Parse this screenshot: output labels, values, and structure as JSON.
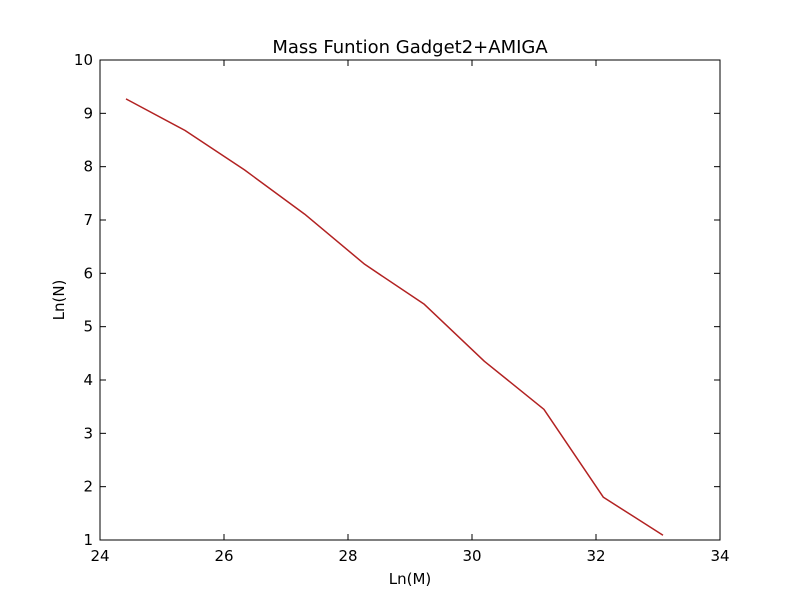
{
  "chart_data": {
    "type": "line",
    "title": "Mass Funtion Gadget2+AMIGA",
    "xlabel": "Ln(M)",
    "ylabel": "Ln(N)",
    "xlim": [
      24,
      34
    ],
    "ylim": [
      1,
      10
    ],
    "xticks": [
      24,
      26,
      28,
      30,
      32,
      34
    ],
    "yticks": [
      1,
      2,
      3,
      4,
      5,
      6,
      7,
      8,
      9,
      10
    ],
    "grid": false,
    "series": [
      {
        "color": "#b22222",
        "x": [
          24.42,
          25.37,
          26.33,
          27.3,
          28.27,
          29.23,
          30.2,
          31.16,
          32.12,
          33.08
        ],
        "y": [
          9.27,
          8.68,
          7.94,
          7.11,
          6.17,
          5.42,
          4.35,
          3.45,
          1.8,
          1.09
        ]
      }
    ]
  }
}
